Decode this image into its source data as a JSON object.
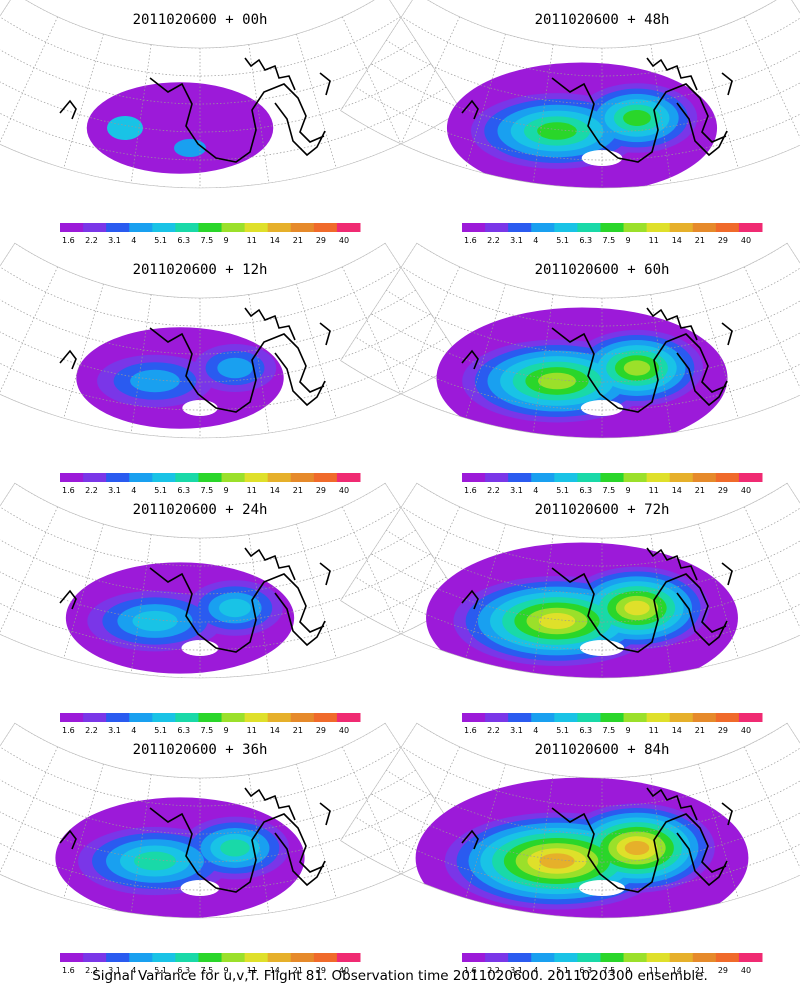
{
  "figure_caption": "Signal Variance for u,v,T. Flight 81. Observation time 2011020600. 2011020300 ensemble.",
  "colorbar": {
    "labels": [
      "1.6",
      "2.2",
      "3.1",
      "4",
      "5.1",
      "6.3",
      "7.5",
      "9",
      "11",
      "14",
      "21",
      "29",
      "40"
    ],
    "colors": [
      "#9c1ad9",
      "#7a36e8",
      "#2a5bf0",
      "#19a0f0",
      "#19c3e6",
      "#19d9a8",
      "#2ad62a",
      "#9be02a",
      "#dfe02a",
      "#e6b02a",
      "#e68a2a",
      "#f06a2a",
      "#f02a72"
    ]
  },
  "panels": [
    {
      "title": "2011020600 + 00h",
      "level": 0
    },
    {
      "title": "2011020600 + 48h",
      "level": 4
    },
    {
      "title": "2011020600 + 12h",
      "level": 1
    },
    {
      "title": "2011020600 + 60h",
      "level": 5
    },
    {
      "title": "2011020600 + 24h",
      "level": 2
    },
    {
      "title": "2011020600 + 72h",
      "level": 6
    },
    {
      "title": "2011020600 + 36h",
      "level": 3
    },
    {
      "title": "2011020600 + 84h",
      "level": 7
    }
  ]
}
